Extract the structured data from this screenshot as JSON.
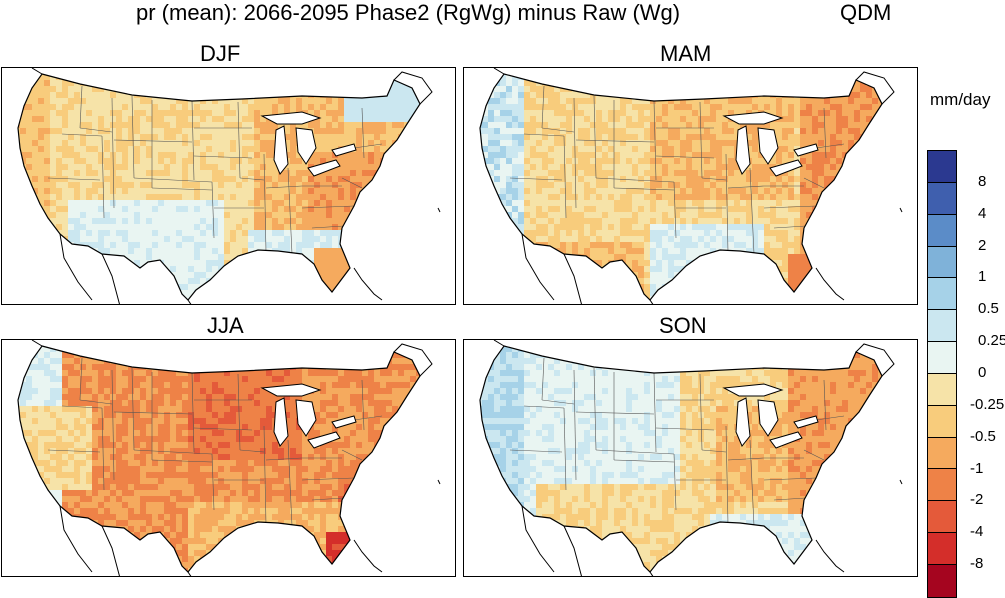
{
  "title": "pr (mean): 2066-2095 Phase2 (RgWg) minus Raw (Wg)",
  "method": "QDM",
  "units": "mm/day",
  "panels": [
    {
      "label": "DJF",
      "character": "dry-east-mild"
    },
    {
      "label": "MAM",
      "character": "mixed-spring"
    },
    {
      "label": "JJA",
      "character": "dry-summer"
    },
    {
      "label": "SON",
      "character": "mixed-autumn"
    }
  ],
  "colorbar": {
    "labels": [
      "8",
      "4",
      "2",
      "1",
      "0.5",
      "0.25",
      "0",
      "-0.25",
      "-0.5",
      "-1",
      "-2",
      "-4",
      "-8"
    ],
    "colors": [
      "#2b3990",
      "#3f5fae",
      "#5b8cc8",
      "#7fb2d9",
      "#a6d2e8",
      "#cbe7f0",
      "#e9f5f2",
      "#f6e3a8",
      "#f8cc7c",
      "#f5aa5e",
      "#ee8247",
      "#e45a3a",
      "#d42e2a",
      "#a5051f"
    ]
  }
}
